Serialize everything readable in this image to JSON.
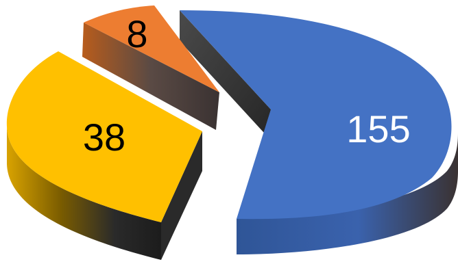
{
  "chart_data": {
    "type": "pie",
    "style": "3d-exploded",
    "categories": [
      "",
      "",
      ""
    ],
    "values": [
      155,
      38,
      8
    ],
    "data_labels": [
      "155",
      "38",
      "8"
    ],
    "colors": [
      "#4472C4",
      "#FFC000",
      "#ED7D31"
    ],
    "label_colors": [
      "#ffffff",
      "#000000",
      "#000000"
    ],
    "title": "",
    "legend": "none"
  }
}
